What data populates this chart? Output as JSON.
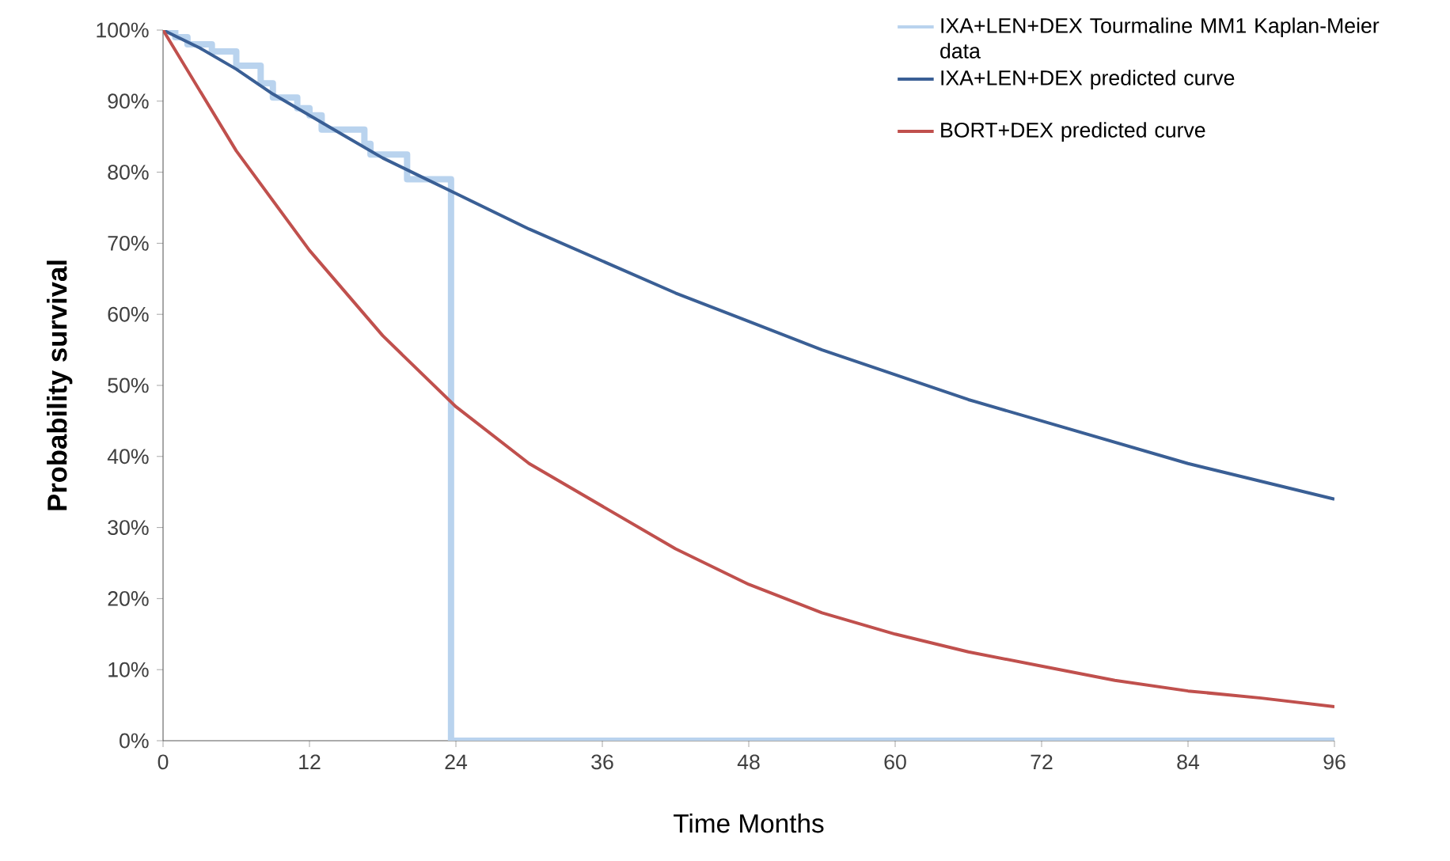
{
  "chart_data": {
    "type": "line",
    "xlabel": "Time Months",
    "ylabel": "Probability survival",
    "xlim": [
      0,
      96
    ],
    "xticks": [
      0,
      12,
      24,
      36,
      48,
      60,
      72,
      84,
      96
    ],
    "ylim": [
      0,
      100
    ],
    "yticks": [
      {
        "value": 0,
        "label": "0%"
      },
      {
        "value": 10,
        "label": "10%"
      },
      {
        "value": 20,
        "label": "20%"
      },
      {
        "value": 30,
        "label": "30%"
      },
      {
        "value": 40,
        "label": "40%"
      },
      {
        "value": 50,
        "label": "50%"
      },
      {
        "value": 60,
        "label": "60%"
      },
      {
        "value": 70,
        "label": "70%"
      },
      {
        "value": 80,
        "label": "80%"
      },
      {
        "value": 90,
        "label": "90%"
      },
      {
        "value": 100,
        "label": "100%"
      }
    ],
    "grid": false,
    "legend": "top right",
    "marker": "none",
    "line_style": "solid",
    "series": [
      {
        "name": "IXA+LEN+DEX  Tourmaline MM1 Kaplan-Meier data",
        "type": "step",
        "color": "#b9d3ee",
        "x": [
          0,
          1,
          2,
          4,
          6,
          8,
          9,
          11,
          12,
          13,
          16,
          16.5,
          17,
          19,
          20,
          23.6,
          96
        ],
        "values": [
          100,
          99,
          98,
          97,
          95,
          92.5,
          90.5,
          89,
          88,
          86,
          86,
          84,
          82.5,
          82.5,
          79,
          0,
          0
        ]
      },
      {
        "name": "IXA+LEN+DEX predicted curve",
        "color": "#3a5f95",
        "x": [
          0,
          3,
          6,
          9,
          12,
          15,
          18,
          21,
          24,
          30,
          36,
          42,
          48,
          54,
          60,
          66,
          72,
          78,
          84,
          90,
          96
        ],
        "values": [
          100,
          97.5,
          94.5,
          91,
          88,
          85,
          82,
          79.5,
          77,
          72,
          67.5,
          63,
          59,
          55,
          51.5,
          48,
          45,
          42,
          39,
          36.5,
          34
        ]
      },
      {
        "name": "BORT+DEX predicted curve",
        "color": "#c0504d",
        "x": [
          0,
          6,
          12,
          18,
          24,
          30,
          36,
          42,
          48,
          54,
          60,
          66,
          72,
          78,
          84,
          90,
          96
        ],
        "values": [
          100,
          83,
          69,
          57,
          47,
          39,
          33,
          27,
          22,
          18,
          15,
          12.5,
          10.5,
          8.5,
          7,
          6,
          4.8
        ]
      }
    ]
  }
}
